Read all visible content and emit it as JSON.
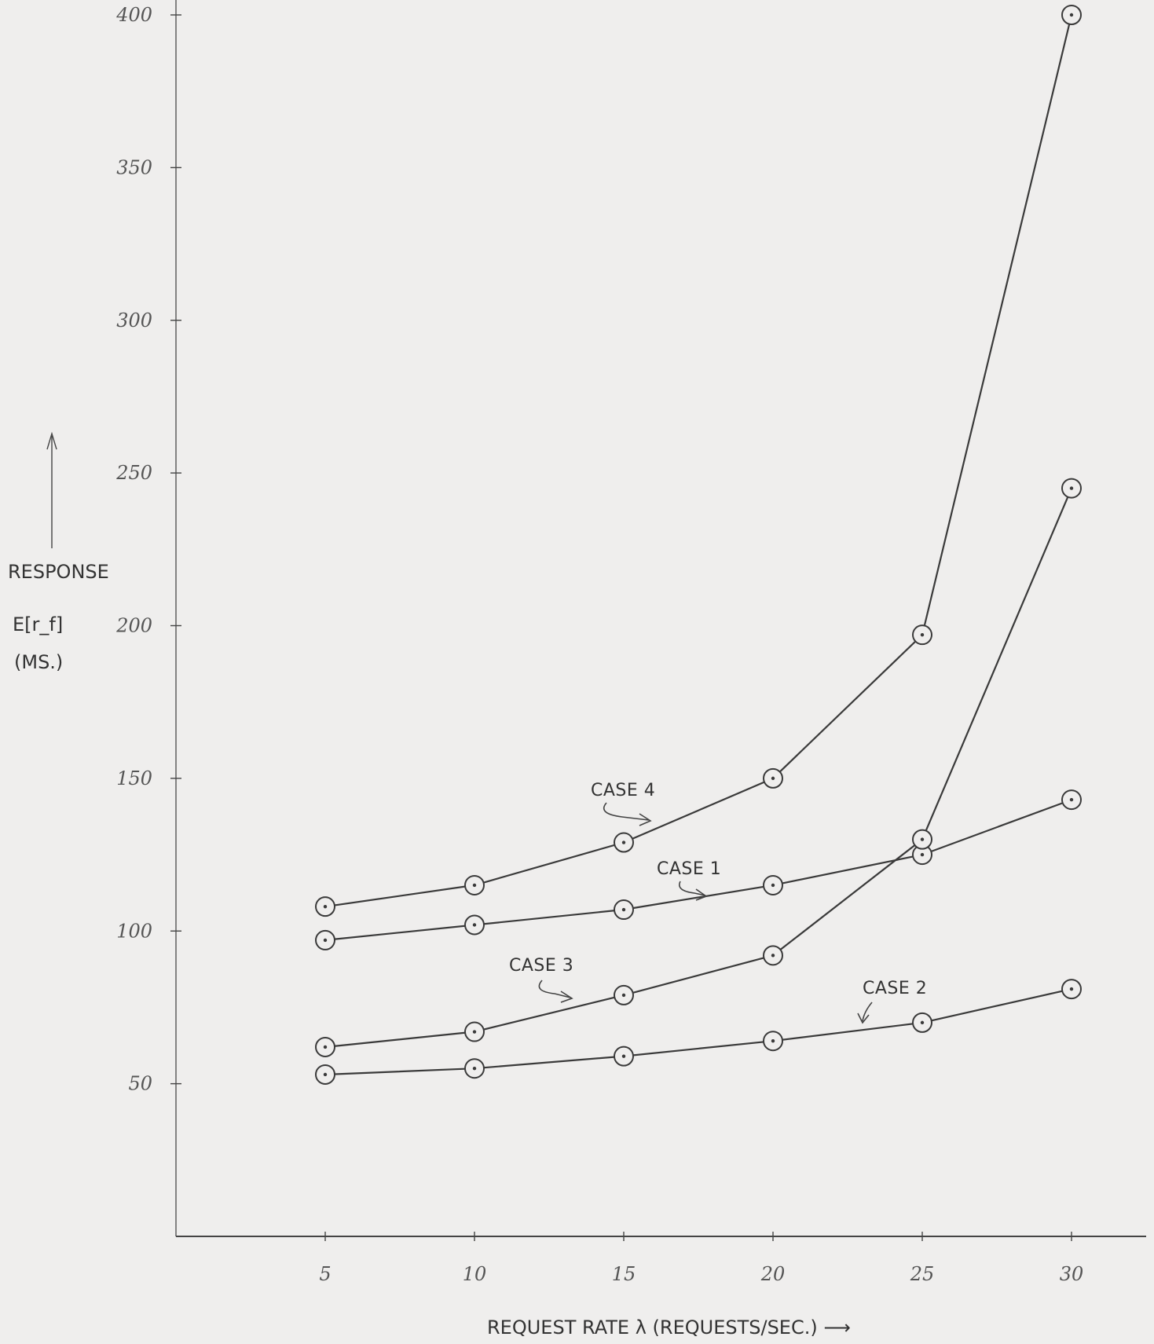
{
  "chart_data": {
    "type": "line",
    "x": [
      5,
      10,
      15,
      20,
      25,
      30
    ],
    "x_ticks": [
      "5",
      "10",
      "15",
      "20",
      "25",
      "30"
    ],
    "y_ticks": [
      "50",
      "100",
      "150",
      "200",
      "250",
      "300",
      "350",
      "400"
    ],
    "xlim": [
      0,
      32
    ],
    "ylim": [
      0,
      405
    ],
    "xlabel": "REQUEST RATE  λ  (REQUESTS/SEC.) ⟶",
    "ylabel_lines": [
      "RESPONSE",
      "E[r_f]",
      "(MS.)"
    ],
    "grid": false,
    "series": [
      {
        "name": "CASE 4",
        "values": [
          108,
          115,
          129,
          150,
          197,
          400
        ]
      },
      {
        "name": "CASE 1",
        "values": [
          97,
          102,
          107,
          115,
          125,
          143
        ]
      },
      {
        "name": "CASE 3",
        "values": [
          62,
          67,
          79,
          92,
          130,
          245
        ]
      },
      {
        "name": "CASE 2",
        "values": [
          53,
          55,
          59,
          64,
          70,
          81
        ]
      }
    ],
    "colors": {
      "line": "#3a3a3a",
      "axis": "#444444",
      "marker": "#3a3a3a"
    }
  }
}
